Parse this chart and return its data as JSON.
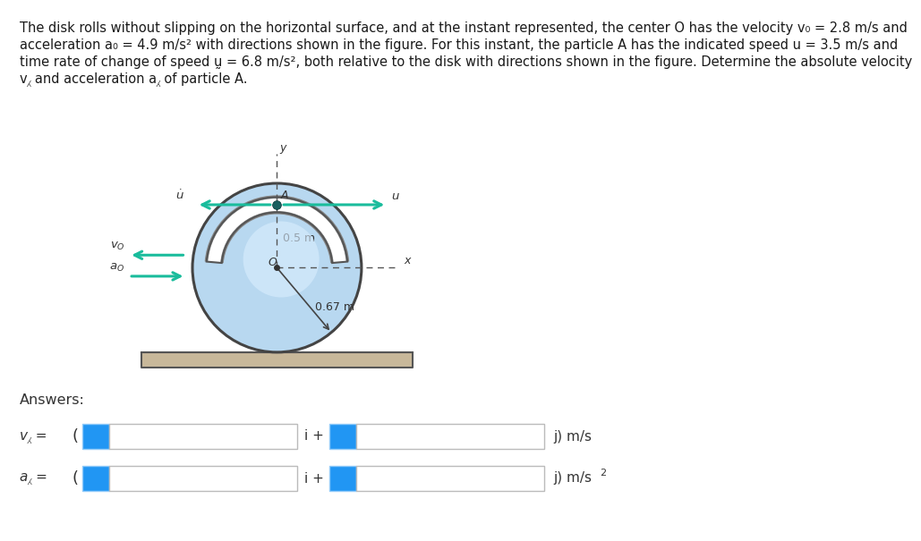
{
  "bg": "#ffffff",
  "title_lines": [
    "The disk rolls without slipping on the horizontal surface, and at the instant represented, the center O has the velocity v₀ = 2.8 m/s and",
    "acceleration a₀ = 4.9 m/s² with directions shown in the figure. For this instant, the particle A has the indicated speed u = 3.5 m/s and",
    "time rate of change of speed ṵ = 6.8 m/s², both relative to the disk with directions shown in the figure. Determine the absolute velocity",
    "v⁁ and acceleration a⁁ of particle A."
  ],
  "title_color": "#1a1a1a",
  "title_highlight": "#c0392b",
  "arrow_color": "#1abc9c",
  "disk_face": "#b8d8f0",
  "disk_edge": "#444444",
  "ground_face": "#c8b89a",
  "ground_edge": "#555555",
  "ans_blue": "#2196F3",
  "ans_border": "#90CAF9"
}
